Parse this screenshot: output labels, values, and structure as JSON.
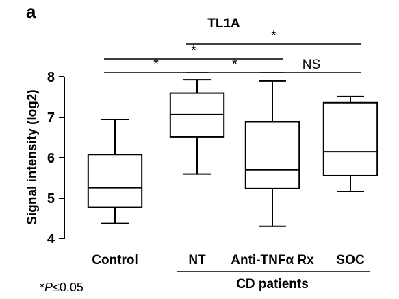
{
  "panel_label": "a",
  "footnote": {
    "prefix": "*",
    "p_symbol": "P",
    "condition": "≤0.05"
  },
  "chart_data": {
    "type": "box",
    "title": "TL1A",
    "xlabel": "",
    "ylabel": "Signal intensity (log2)",
    "ylim": [
      4,
      8
    ],
    "yticks": [
      4,
      5,
      6,
      7,
      8
    ],
    "grid": false,
    "categories": [
      "Control",
      "NT",
      "Anti-TNFα Rx",
      "SOC"
    ],
    "group_label": {
      "text": "CD patients",
      "spans": [
        "NT",
        "Anti-TNFα Rx",
        "SOC"
      ]
    },
    "boxes": [
      {
        "category": "Control",
        "min": 4.38,
        "q1": 4.77,
        "median": 5.26,
        "q3": 6.08,
        "max": 6.95
      },
      {
        "category": "NT",
        "min": 5.6,
        "q1": 6.51,
        "median": 7.07,
        "q3": 7.6,
        "max": 7.93
      },
      {
        "category": "Anti-TNFα Rx",
        "min": 4.31,
        "q1": 5.24,
        "median": 5.7,
        "q3": 6.89,
        "max": 7.9
      },
      {
        "category": "SOC",
        "min": 5.17,
        "q1": 5.56,
        "median": 6.15,
        "q3": 7.36,
        "max": 7.51
      }
    ],
    "comparisons": [
      {
        "from": "Control",
        "to": "NT",
        "label": "*",
        "level": 1
      },
      {
        "from": "NT",
        "to": "Anti-TNFα Rx",
        "label": "*",
        "level": 1
      },
      {
        "from": "Anti-TNFα Rx",
        "to": "SOC",
        "label": "NS",
        "level": 1
      },
      {
        "from": "Control",
        "to": "Anti-TNFα Rx",
        "label": "*",
        "level": 2
      },
      {
        "from": "NT",
        "to": "SOC",
        "label": "*",
        "level": 3
      }
    ]
  }
}
